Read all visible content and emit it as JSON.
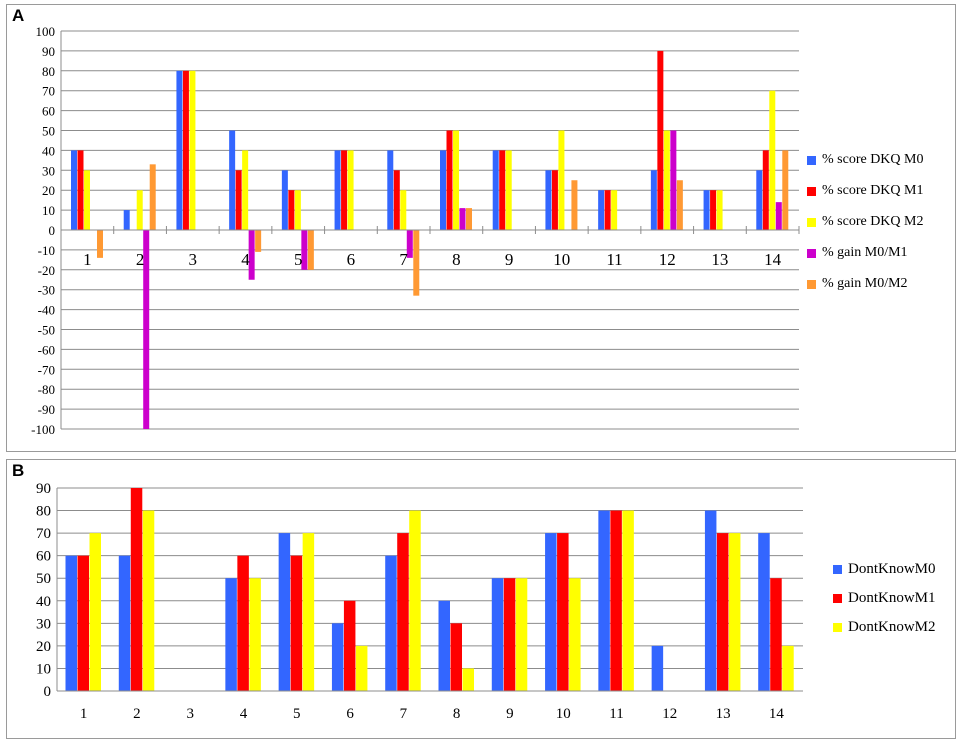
{
  "chart_data": [
    {
      "panel": "A",
      "type": "bar",
      "categories": [
        "1",
        "2",
        "3",
        "4",
        "5",
        "6",
        "7",
        "8",
        "9",
        "10",
        "11",
        "12",
        "13",
        "14"
      ],
      "series": [
        {
          "name": "% score DKQ M0",
          "color": "#3366ff",
          "values": [
            40,
            10,
            80,
            50,
            30,
            40,
            40,
            40,
            40,
            30,
            20,
            30,
            20,
            30
          ]
        },
        {
          "name": "% score DKQ M1",
          "color": "#ff0000",
          "values": [
            40,
            0,
            80,
            30,
            20,
            40,
            30,
            50,
            40,
            30,
            20,
            90,
            20,
            40
          ]
        },
        {
          "name": "% score DKQ M2",
          "color": "#ffff00",
          "values": [
            30,
            20,
            80,
            40,
            20,
            40,
            20,
            50,
            40,
            50,
            20,
            50,
            20,
            70
          ]
        },
        {
          "name": "% gain M0/M1",
          "color": "#cc00cc",
          "values": [
            0,
            -100,
            0,
            -25,
            -20,
            0,
            -14,
            11,
            0,
            0,
            0,
            50,
            0,
            14
          ]
        },
        {
          "name": "% gain M0/M2",
          "color": "#ff9933",
          "values": [
            -14,
            33,
            0,
            -11,
            -20,
            0,
            -33,
            11,
            0,
            25,
            0,
            25,
            0,
            40
          ]
        }
      ],
      "ylim": [
        -100,
        100
      ],
      "yticks": [
        100,
        90,
        80,
        70,
        60,
        50,
        40,
        30,
        20,
        10,
        0,
        -10,
        -20,
        -30,
        -40,
        -50,
        -60,
        -70,
        -80,
        -90,
        -100
      ],
      "grid": true,
      "legend_position": "right"
    },
    {
      "panel": "B",
      "type": "bar",
      "categories": [
        "1",
        "2",
        "3",
        "4",
        "5",
        "6",
        "7",
        "8",
        "9",
        "10",
        "11",
        "12",
        "13",
        "14"
      ],
      "series": [
        {
          "name": "DontKnowM0",
          "color": "#3366ff",
          "values": [
            60,
            60,
            0,
            50,
            70,
            30,
            60,
            40,
            50,
            70,
            80,
            20,
            80,
            70
          ]
        },
        {
          "name": "DontKnowM1",
          "color": "#ff0000",
          "values": [
            60,
            90,
            0,
            60,
            60,
            40,
            70,
            30,
            50,
            70,
            80,
            0,
            70,
            50
          ]
        },
        {
          "name": "DontKnowM2",
          "color": "#ffff00",
          "values": [
            70,
            80,
            0,
            50,
            70,
            20,
            80,
            10,
            50,
            50,
            80,
            0,
            70,
            20
          ]
        }
      ],
      "ylim": [
        0,
        90
      ],
      "yticks": [
        90,
        80,
        70,
        60,
        50,
        40,
        30,
        20,
        10,
        0
      ],
      "grid": true,
      "legend_position": "right"
    }
  ],
  "panels": {
    "a_label": "A",
    "b_label": "B"
  }
}
